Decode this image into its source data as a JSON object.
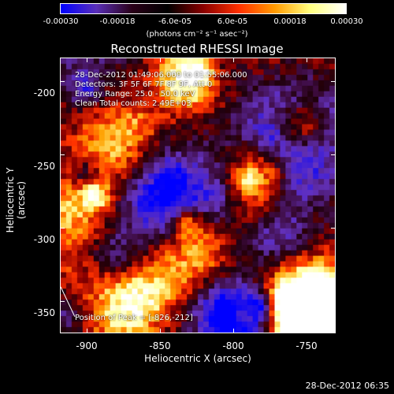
{
  "colorbar": {
    "ticks": [
      "-0.00030",
      "-0.00018",
      "-6.0e-05",
      "6.0e-05",
      "0.00018",
      "0.00030"
    ],
    "unit": "(photons cm⁻² s⁻¹ asec⁻²)",
    "colormap": [
      "#0000ff",
      "#5a2fb8",
      "#2a0018",
      "#000000",
      "#8a0000",
      "#ff3000",
      "#ff9a00",
      "#ffff80",
      "#ffffff"
    ]
  },
  "title": "Reconstructed RHESSI Image",
  "annotations": {
    "time_range": "28-Dec-2012 01:49:06.000 to 01:55:06.000",
    "detectors": "Detectors: 3F 5F 6F 7F 8F 9F, Att 0",
    "energy_range": "Energy Range: 25.0 - 50.0 keV",
    "clean_counts": "Clean    Total counts: 2.49E+03",
    "peak": "Position of Peak = [-826,-212]"
  },
  "axes": {
    "x_label": "Heliocentric X (arcsec)",
    "y_label": "Heliocentric Y (arcsec)",
    "x_ticks": [
      "-900",
      "-850",
      "-800",
      "-750"
    ],
    "x_tick_values": [
      -900,
      -850,
      -800,
      -750
    ],
    "x_range": [
      -918,
      -730
    ],
    "y_ticks": [
      "-200",
      "-250",
      "-300",
      "-350"
    ],
    "y_tick_values": [
      -200,
      -250,
      -300,
      -350
    ],
    "y_range": [
      -372,
      -184
    ]
  },
  "timestamp": "28-Dec-2012 06:35"
}
